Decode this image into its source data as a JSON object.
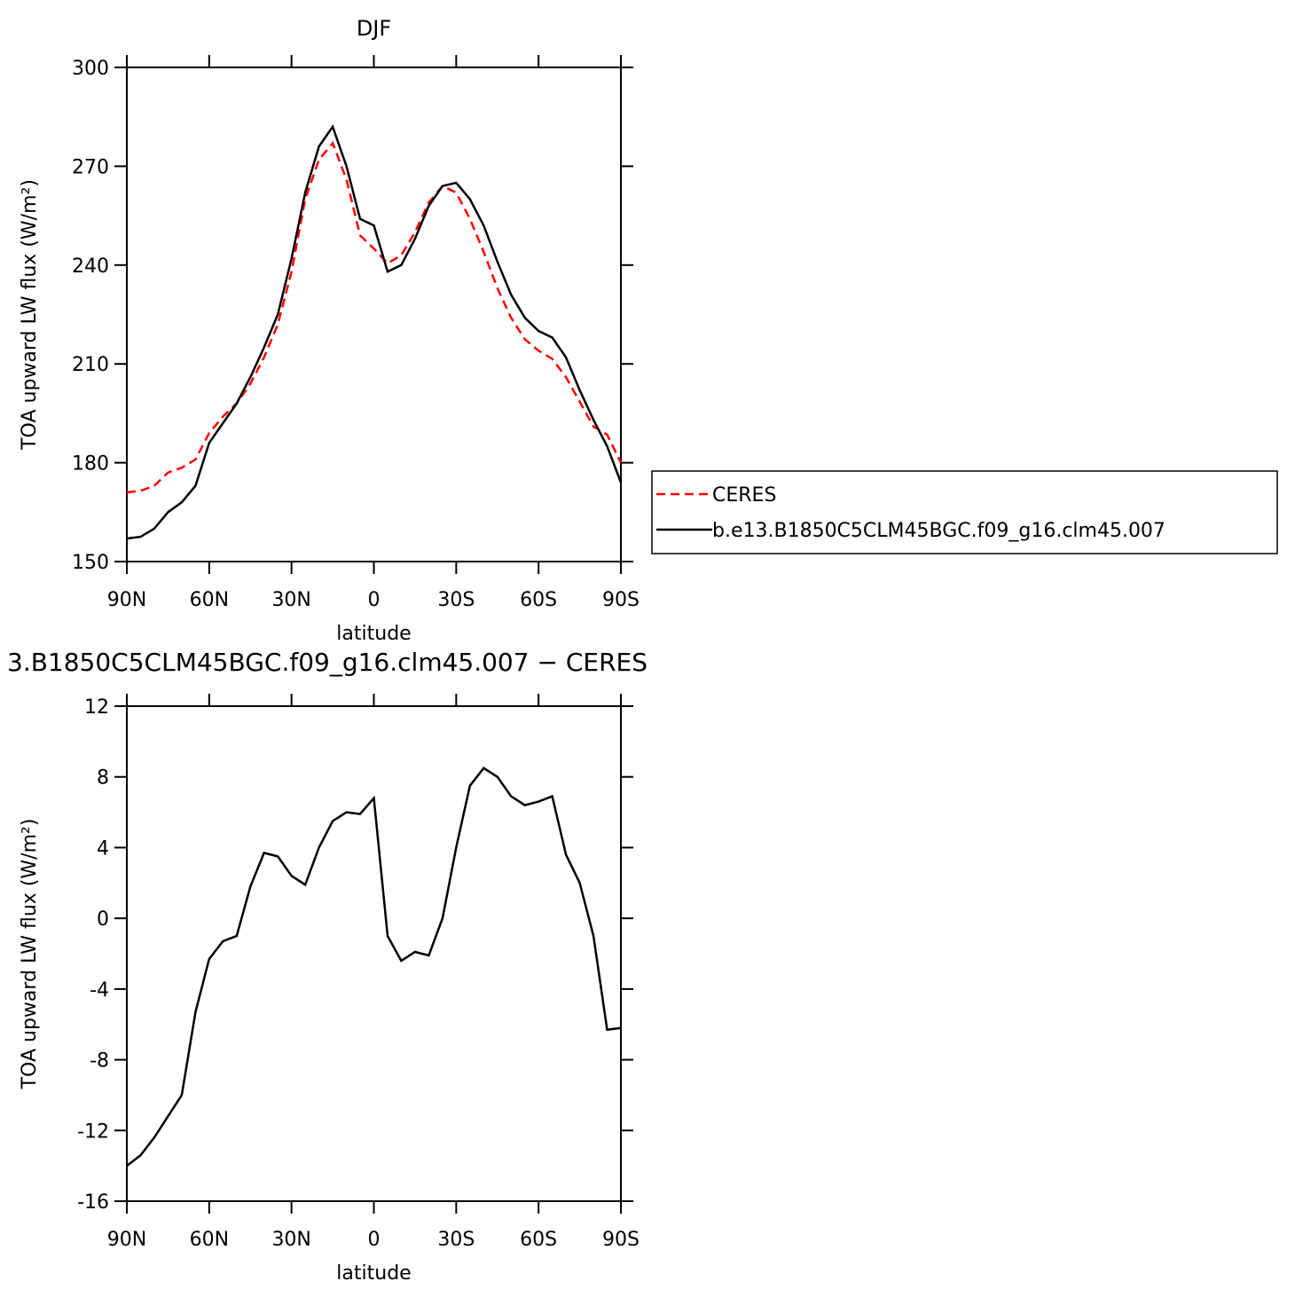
{
  "chart_data": [
    {
      "type": "line",
      "title": "DJF",
      "x_label": "latitude",
      "y_label": "TOA upward LW flux (W/m²)",
      "x": [
        90,
        85,
        80,
        75,
        70,
        65,
        60,
        55,
        50,
        45,
        40,
        35,
        30,
        25,
        20,
        15,
        10,
        5,
        0,
        -5,
        -10,
        -15,
        -20,
        -25,
        -30,
        -35,
        -40,
        -45,
        -50,
        -55,
        -60,
        -65,
        -70,
        -75,
        -80,
        -85,
        -90
      ],
      "xlim": [
        90,
        -90
      ],
      "xticks": [
        {
          "value": 90,
          "label": "90N"
        },
        {
          "value": 60,
          "label": "60N"
        },
        {
          "value": 30,
          "label": "30N"
        },
        0,
        {
          "value": -30,
          "label": "30S"
        },
        {
          "value": -60,
          "label": "60S"
        },
        {
          "value": -90,
          "label": "90S"
        }
      ],
      "ylim": [
        150,
        300
      ],
      "yticks": [
        150,
        180,
        210,
        240,
        270,
        300
      ],
      "legend": "right",
      "series": [
        {
          "name": "CERES",
          "color": "#ff0000",
          "linestyle": "dashed",
          "values": [
            171,
            171.5,
            173,
            177,
            178.5,
            181,
            189,
            194,
            198,
            204,
            212,
            222,
            238,
            260,
            272,
            277,
            266,
            249,
            245,
            240.5,
            243,
            250,
            259,
            264,
            262,
            254,
            244,
            233,
            224,
            217.5,
            214,
            211.5,
            206,
            198.5,
            191,
            188.5,
            180
          ]
        },
        {
          "name": "b.e13.B1850C5CLM45BGC.f09_g16.clm45.007",
          "color": "#000000",
          "linestyle": "solid",
          "values": [
            157,
            157.5,
            160,
            165,
            168,
            173,
            186,
            192,
            198,
            206,
            215,
            225,
            242,
            262,
            276,
            282,
            270,
            254,
            252,
            238,
            240,
            248,
            258,
            264,
            265,
            260,
            252,
            241,
            231,
            224,
            220,
            218,
            212,
            202,
            193,
            185,
            174
          ]
        }
      ]
    },
    {
      "type": "line",
      "title": "3.B1850C5CLM45BGC.f09_g16.clm45.007 − CERES",
      "x_label": "latitude",
      "y_label": "TOA upward LW flux (W/m²)",
      "x": [
        90,
        85,
        80,
        75,
        70,
        65,
        60,
        55,
        50,
        45,
        40,
        35,
        30,
        25,
        20,
        15,
        10,
        5,
        0,
        -5,
        -10,
        -15,
        -20,
        -25,
        -30,
        -35,
        -40,
        -45,
        -50,
        -55,
        -60,
        -65,
        -70,
        -75,
        -80,
        -85,
        -90
      ],
      "xlim": [
        90,
        -90
      ],
      "xticks": [
        {
          "value": 90,
          "label": "90N"
        },
        {
          "value": 60,
          "label": "60N"
        },
        {
          "value": 30,
          "label": "30N"
        },
        0,
        {
          "value": -30,
          "label": "30S"
        },
        {
          "value": -60,
          "label": "60S"
        },
        {
          "value": -90,
          "label": "90S"
        }
      ],
      "ylim": [
        -16,
        12
      ],
      "yticks": [
        -16,
        -12,
        -8,
        -4,
        0,
        4,
        8,
        12
      ],
      "series": [
        {
          "color": "#000000",
          "linestyle": "solid",
          "values": [
            -14,
            -13.4,
            -12.4,
            -11.2,
            -10,
            -5.3,
            -2.3,
            -1.3,
            -1,
            1.8,
            3.7,
            3.5,
            2.4,
            1.9,
            4,
            5.5,
            6,
            5.9,
            6.8,
            -1,
            -2.4,
            -1.9,
            -2.1,
            0,
            4,
            7.5,
            8.5,
            8,
            6.9,
            6.4,
            6.6,
            6.9,
            3.6,
            2,
            -1,
            -6.3,
            -6.2
          ]
        }
      ]
    }
  ]
}
